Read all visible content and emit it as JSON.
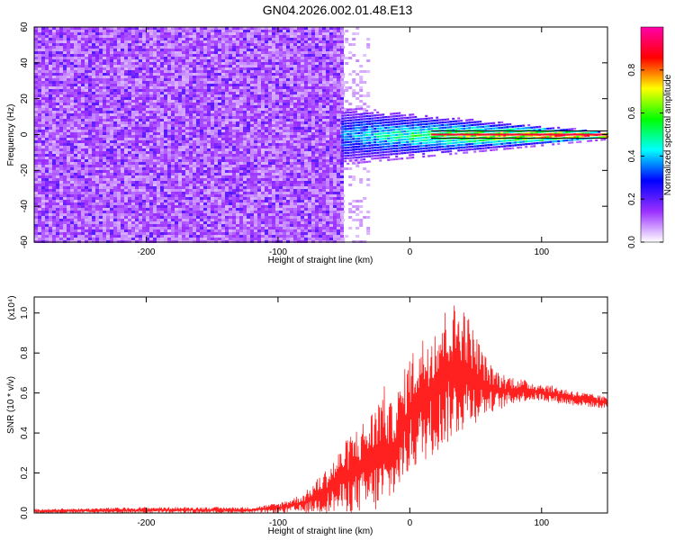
{
  "title": "GN04.2026.002.01.48.E13",
  "chart_data": [
    {
      "type": "heatmap",
      "xlabel": "Height of straight line (km)",
      "ylabel": "Frequency (Hz)",
      "xlim": [
        -285,
        150
      ],
      "ylim": [
        -60,
        60
      ],
      "x_ticks": [
        -200,
        -100,
        0,
        100
      ],
      "x_tick_labels": [
        "-200",
        "-100",
        "0",
        "100"
      ],
      "y_ticks": [
        -60,
        -40,
        -20,
        0,
        20,
        40,
        60
      ],
      "y_tick_labels": [
        "-60",
        "-40",
        "-20",
        "0",
        "20",
        "40",
        "60"
      ],
      "colorbar": {
        "label": "Normalized spectral amplitude",
        "range": [
          0,
          1
        ],
        "ticks": [
          0.0,
          0.2,
          0.4,
          0.6,
          0.8
        ],
        "tick_labels": [
          "0.0",
          "0.2",
          "0.4",
          "0.6",
          "0.8"
        ],
        "colormap": [
          "#ffffff",
          "#9b30ff",
          "#0000ff",
          "#00ffff",
          "#00ff00",
          "#ffff00",
          "#ff0000",
          "#ff00aa"
        ]
      },
      "regions": [
        {
          "x": [
            -285,
            -52
          ],
          "freq": [
            -60,
            60
          ],
          "level": 0.12,
          "description_color": "#7a2cff"
        },
        {
          "x": [
            -52,
            150
          ],
          "freq_center": 0,
          "level_peak": 0.9
        }
      ],
      "grid": false
    },
    {
      "type": "line",
      "xlabel": "Height of straight line (km)",
      "ylabel": "SNR (10 * v/v)",
      "y_multiplier": "(x10⁴)",
      "xlim": [
        -285,
        150
      ],
      "ylim": [
        0,
        1.08
      ],
      "x_ticks": [
        -200,
        -100,
        0,
        100
      ],
      "x_tick_labels": [
        "-200",
        "-100",
        "0",
        "100"
      ],
      "y_ticks": [
        0.0,
        0.2,
        0.4,
        0.6,
        0.8,
        1.0
      ],
      "y_tick_labels": [
        "0.0",
        "0.2",
        "0.4",
        "0.6",
        "0.8",
        "1.0"
      ],
      "color": "#ff2020",
      "series_envelope": {
        "x": [
          -285,
          -200,
          -120,
          -100,
          -80,
          -60,
          -45,
          -30,
          -20,
          -15,
          -10,
          0,
          20,
          30,
          40,
          50,
          60,
          70,
          80,
          90,
          100,
          120,
          150
        ],
        "lower": [
          0.0,
          0.0,
          0.0,
          0.0,
          0.0,
          0.0,
          0.0,
          0.0,
          0.0,
          0.05,
          0.1,
          0.2,
          0.3,
          0.35,
          0.4,
          0.45,
          0.5,
          0.52,
          0.55,
          0.56,
          0.56,
          0.54,
          0.52
        ],
        "upper": [
          0.02,
          0.03,
          0.03,
          0.05,
          0.1,
          0.25,
          0.4,
          0.5,
          0.65,
          0.55,
          0.6,
          0.8,
          0.98,
          1.05,
          1.06,
          0.9,
          0.75,
          0.7,
          0.68,
          0.66,
          0.65,
          0.62,
          0.58
        ]
      },
      "grid": false
    }
  ]
}
